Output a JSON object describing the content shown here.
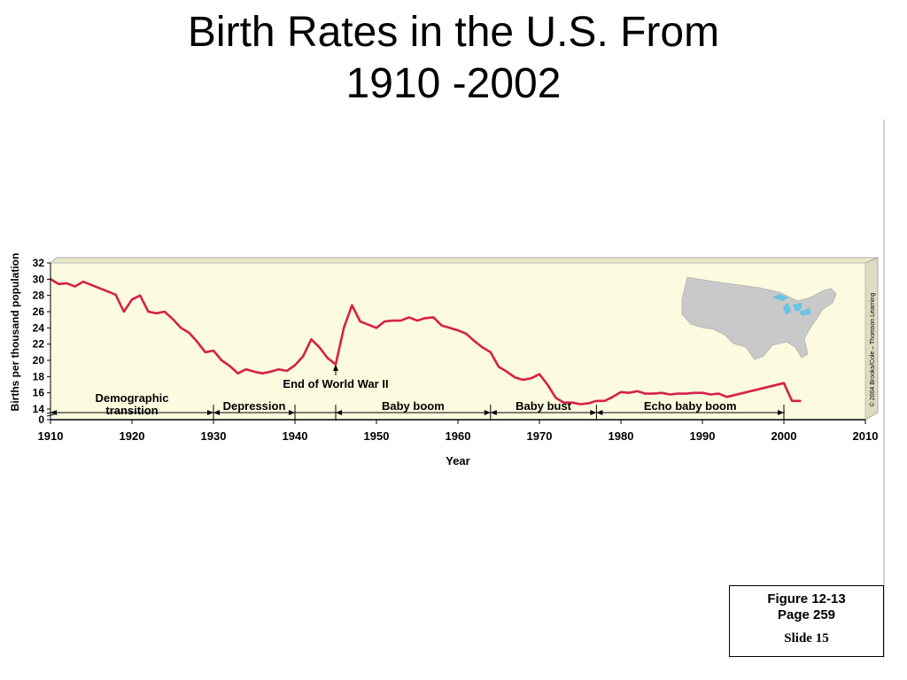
{
  "slide": {
    "title_line1": "Birth Rates in the U.S. From",
    "title_line2": "1910 -2002"
  },
  "figure_ref": {
    "line1": "Figure 12-13",
    "line2": "Page 259",
    "slide": "Slide 15"
  },
  "chart_data": {
    "type": "line",
    "title": "",
    "xlabel": "Year",
    "ylabel": "Births per thousand population",
    "xlim": [
      1910,
      2010
    ],
    "ylim": [
      0,
      32
    ],
    "y_axis_break": [
      0,
      12
    ],
    "xticks": [
      1910,
      1920,
      1930,
      1940,
      1950,
      1960,
      1970,
      1980,
      1990,
      2000,
      2010
    ],
    "yticks": [
      0,
      14,
      16,
      18,
      20,
      22,
      24,
      26,
      28,
      30,
      32
    ],
    "grid": false,
    "background_color": "#fdfbdf",
    "line_color": "#d6204a",
    "series": [
      {
        "name": "",
        "x": [
          1910,
          1911,
          1912,
          1913,
          1914,
          1915,
          1916,
          1917,
          1918,
          1919,
          1920,
          1921,
          1922,
          1923,
          1924,
          1925,
          1926,
          1927,
          1928,
          1929,
          1930,
          1931,
          1932,
          1933,
          1934,
          1935,
          1936,
          1937,
          1938,
          1939,
          1940,
          1941,
          1942,
          1943,
          1944,
          1945,
          1946,
          1947,
          1948,
          1949,
          1950,
          1951,
          1952,
          1953,
          1954,
          1955,
          1956,
          1957,
          1958,
          1959,
          1960,
          1961,
          1962,
          1963,
          1964,
          1965,
          1966,
          1967,
          1968,
          1969,
          1970,
          1971,
          1972,
          1973,
          1974,
          1975,
          1976,
          1977,
          1978,
          1979,
          1980,
          1981,
          1982,
          1983,
          1984,
          1985,
          1986,
          1987,
          1988,
          1989,
          1990,
          1991,
          1992,
          1993,
          2000,
          2001,
          2002
        ],
        "y": [
          30.0,
          29.4,
          29.5,
          29.1,
          29.7,
          29.3,
          28.9,
          28.5,
          28.1,
          26.0,
          27.5,
          28.0,
          26.0,
          25.8,
          26.0,
          25.1,
          24.0,
          23.4,
          22.3,
          21.0,
          21.2,
          20.0,
          19.3,
          18.4,
          18.9,
          18.6,
          18.4,
          18.6,
          18.9,
          18.7,
          19.4,
          20.5,
          22.6,
          21.6,
          20.3,
          19.5,
          24.0,
          26.8,
          24.8,
          24.4,
          24.0,
          24.8,
          24.9,
          24.9,
          25.3,
          24.9,
          25.2,
          25.3,
          24.3,
          24.0,
          23.7,
          23.3,
          22.4,
          21.6,
          21.0,
          19.2,
          18.6,
          17.9,
          17.6,
          17.8,
          18.3,
          17.0,
          15.4,
          14.8,
          14.8,
          14.6,
          14.7,
          15.0,
          15.0,
          15.5,
          16.1,
          16.0,
          16.2,
          15.9,
          15.9,
          16.0,
          15.8,
          15.9,
          15.9,
          16.0,
          16.0,
          15.8,
          15.9,
          15.5,
          17.2,
          15.0,
          15.0
        ]
      }
    ],
    "era_labels": [
      {
        "label": "Demographic\ntransition",
        "x_from": 1910,
        "x_to": 1930
      },
      {
        "label": "Depression",
        "x_from": 1930,
        "x_to": 1940
      },
      {
        "label": "Baby boom",
        "x_from": 1945,
        "x_to": 1964
      },
      {
        "label": "Baby bust",
        "x_from": 1964,
        "x_to": 1977
      },
      {
        "label": "Echo baby boom",
        "x_from": 1977,
        "x_to": 2000
      }
    ],
    "annotation": {
      "label": "End of World War II",
      "x": 1945
    },
    "credit": "© 2004 Brooks/Cole – Thomson Learning",
    "map_inset": "usa-map-icon"
  }
}
